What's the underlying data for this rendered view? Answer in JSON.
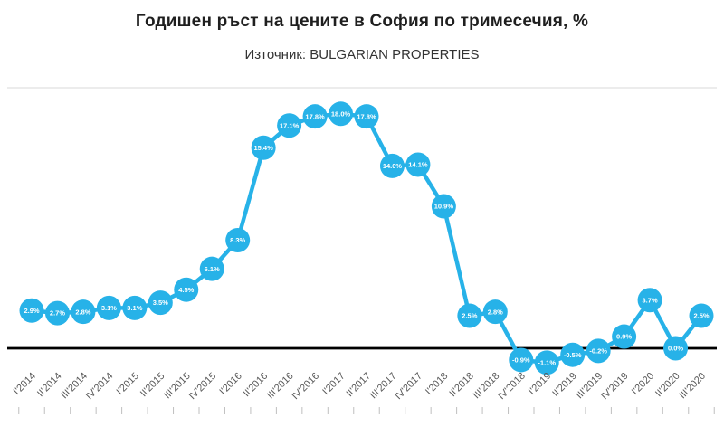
{
  "chart_data": {
    "type": "line",
    "title": "Годишен ръст на цените в София по тримесечия, %",
    "subtitle": "Източник: BULGARIAN PROPERTIES",
    "categories": [
      "I'2014",
      "II'2014",
      "III'2014",
      "IV'2014",
      "I'2015",
      "II'2015",
      "III'2015",
      "IV'2015",
      "I'2016",
      "II'2016",
      "III'2016",
      "IV'2016",
      "I'2017",
      "II'2017",
      "III'2017",
      "IV'2017",
      "I'2018",
      "II'2018",
      "III'2018",
      "IV'2018",
      "I'2019",
      "II'2019",
      "III'2019",
      "IV'2019",
      "I'2020",
      "II'2020",
      "III'2020"
    ],
    "values": [
      2.9,
      2.7,
      2.8,
      3.1,
      3.1,
      3.5,
      4.5,
      6.1,
      8.3,
      15.4,
      17.1,
      17.8,
      18.0,
      17.8,
      14.0,
      14.1,
      10.9,
      2.5,
      2.8,
      -0.9,
      -1.1,
      -0.5,
      -0.2,
      0.9,
      3.7,
      0.0,
      2.5
    ],
    "data_labels": [
      "2.9%",
      "2.7%",
      "2.8%",
      "3.1%",
      "3.1%",
      "3.5%",
      "4.5%",
      "6.1%",
      "8.3%",
      "15.4%",
      "17.1%",
      "17.8%",
      "18.0%",
      "17.8%",
      "14.0%",
      "14.1%",
      "10.9%",
      "2.5%",
      "2.8%",
      "-0.9%",
      "-1.1%",
      "-0.5%",
      "-0.2%",
      "0.9%",
      "3.7%",
      "0.0%",
      "2.5%"
    ],
    "ylabel": "",
    "xlabel": "",
    "ylim": [
      -2,
      21
    ],
    "gridline_values": [
      0,
      20
    ],
    "legend": "none",
    "marker_style": "filled-circle-with-label",
    "colors": {
      "series": "#27b2e8",
      "data_label_text": "#ffffff",
      "zero_line": "#000000",
      "gridline": "#d9d9d9",
      "tick": "#bfbfbf",
      "axis_label_text": "#595959",
      "title_text": "#1f1f1f"
    }
  }
}
